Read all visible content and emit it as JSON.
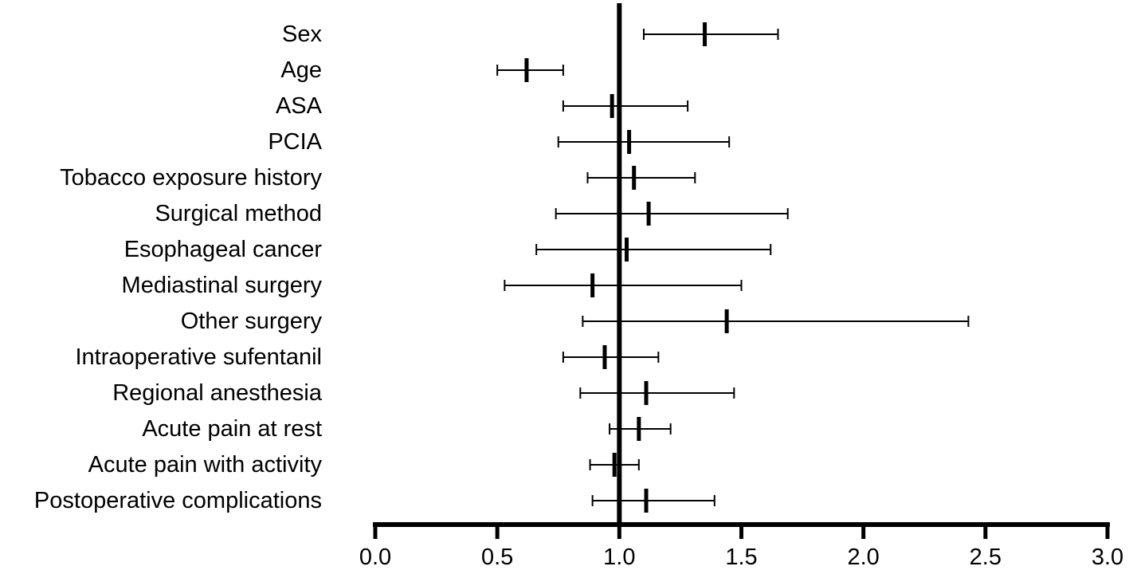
{
  "chart_data": {
    "type": "forest",
    "title": "",
    "xlabel": "",
    "ylabel": "",
    "xlim": [
      0,
      3
    ],
    "reference_line": 1.0,
    "xticks": [
      "0.0",
      "0.5",
      "1.0",
      "1.5",
      "2.0",
      "2.5",
      "3.0"
    ],
    "rows": [
      {
        "label": "Sex",
        "estimate": 1.35,
        "lower": 1.1,
        "upper": 1.65
      },
      {
        "label": "Age",
        "estimate": 0.62,
        "lower": 0.5,
        "upper": 0.77
      },
      {
        "label": "ASA",
        "estimate": 0.97,
        "lower": 0.77,
        "upper": 1.28
      },
      {
        "label": "PCIA",
        "estimate": 1.04,
        "lower": 0.75,
        "upper": 1.45
      },
      {
        "label": "Tobacco exposure history",
        "estimate": 1.06,
        "lower": 0.87,
        "upper": 1.31
      },
      {
        "label": "Surgical method",
        "estimate": 1.12,
        "lower": 0.74,
        "upper": 1.69
      },
      {
        "label": "Esophageal cancer",
        "estimate": 1.03,
        "lower": 0.66,
        "upper": 1.62
      },
      {
        "label": "Mediastinal surgery",
        "estimate": 0.89,
        "lower": 0.53,
        "upper": 1.5
      },
      {
        "label": "Other surgery",
        "estimate": 1.44,
        "lower": 0.85,
        "upper": 2.43
      },
      {
        "label": "Intraoperative sufentanil",
        "estimate": 0.94,
        "lower": 0.77,
        "upper": 1.16
      },
      {
        "label": "Regional anesthesia",
        "estimate": 1.11,
        "lower": 0.84,
        "upper": 1.47
      },
      {
        "label": "Acute pain at rest",
        "estimate": 1.08,
        "lower": 0.96,
        "upper": 1.21
      },
      {
        "label": "Acute pain with activity",
        "estimate": 0.98,
        "lower": 0.88,
        "upper": 1.08
      },
      {
        "label": "Postoperative complications",
        "estimate": 1.11,
        "lower": 0.89,
        "upper": 1.39
      }
    ]
  }
}
